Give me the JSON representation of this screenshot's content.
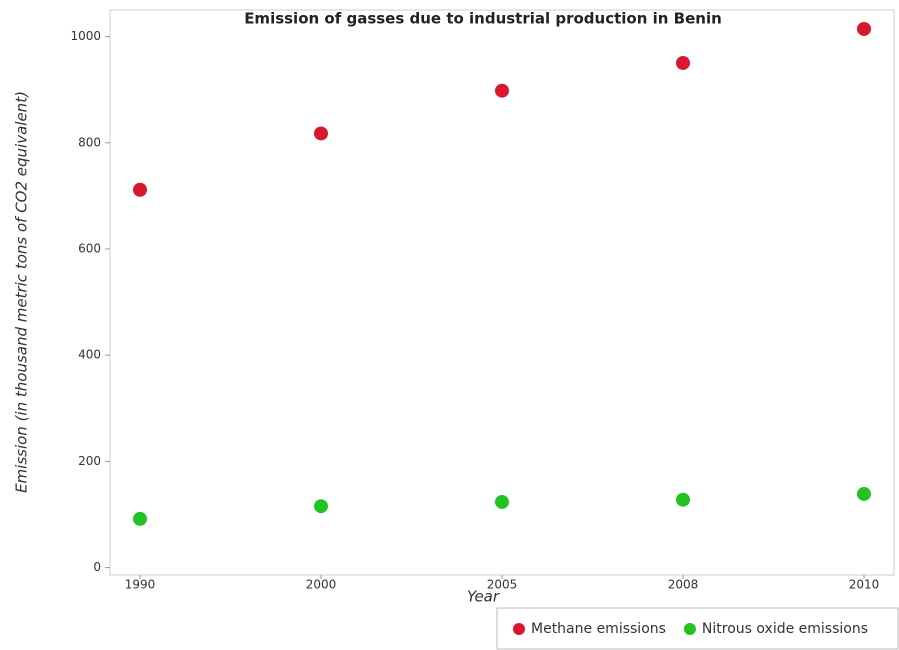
{
  "chart_data": {
    "type": "scatter",
    "title": "Emission of gasses due to industrial production in Benin",
    "x_label": "Year",
    "y_label": "Emission (in thousand metric tons of CO2 equivalent)",
    "categories": [
      "1990",
      "2000",
      "2005",
      "2008",
      "2010"
    ],
    "series": [
      {
        "name": "Methane emissions",
        "color": "#d8182f",
        "values": [
          711.5,
          817.5,
          898.0,
          950.3,
          1014.3
        ]
      },
      {
        "name": "Nitrous oxide emissions",
        "color": "#22c422",
        "values": [
          91.6,
          115.5,
          123.5,
          127.8,
          138.6
        ]
      }
    ],
    "ylim": [
      -14,
      1050
    ],
    "yticks": [
      0,
      200,
      400,
      600,
      800,
      1000
    ],
    "grid": false,
    "legend": "bottom-right"
  }
}
